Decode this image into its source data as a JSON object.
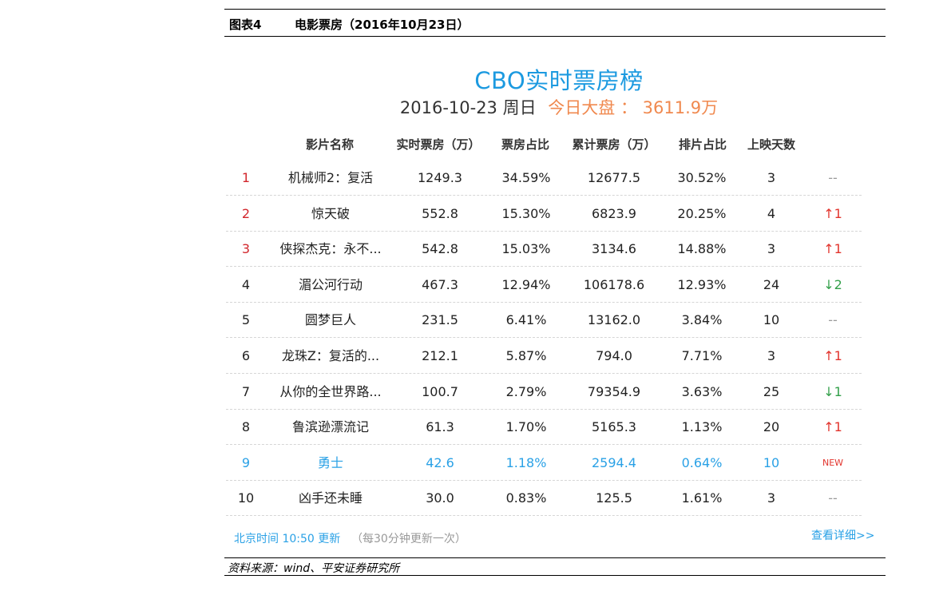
{
  "figure": {
    "number": "图表4",
    "title": "电影票房（2016年10月23日）",
    "source": "资料来源：wind、平安证券研究所"
  },
  "board": {
    "title": "CBO实时票房榜",
    "date": "2016-10-23 周日",
    "market": "今日大盘 ： 3611.9万"
  },
  "columns": [
    "影片名称",
    "实时票房（万）",
    "票房占比",
    "累计票房（万）",
    "排片占比",
    "上映天数"
  ],
  "rows": [
    {
      "rank": "1",
      "name": "机械师2：复活",
      "realtime": "1249.3",
      "share": "34.59%",
      "cumulative": "12677.5",
      "showing": "30.52%",
      "days": "3",
      "trend": "--",
      "trend_type": "flat"
    },
    {
      "rank": "2",
      "name": "惊天破",
      "realtime": "552.8",
      "share": "15.30%",
      "cumulative": "6823.9",
      "showing": "20.25%",
      "days": "4",
      "trend": "↑1",
      "trend_type": "up"
    },
    {
      "rank": "3",
      "name": "侠探杰克：永不...",
      "realtime": "542.8",
      "share": "15.03%",
      "cumulative": "3134.6",
      "showing": "14.88%",
      "days": "3",
      "trend": "↑1",
      "trend_type": "up"
    },
    {
      "rank": "4",
      "name": "湄公河行动",
      "realtime": "467.3",
      "share": "12.94%",
      "cumulative": "106178.6",
      "showing": "12.93%",
      "days": "24",
      "trend": "↓2",
      "trend_type": "down"
    },
    {
      "rank": "5",
      "name": "圆梦巨人",
      "realtime": "231.5",
      "share": "6.41%",
      "cumulative": "13162.0",
      "showing": "3.84%",
      "days": "10",
      "trend": "--",
      "trend_type": "flat"
    },
    {
      "rank": "6",
      "name": "龙珠Z：复活的...",
      "realtime": "212.1",
      "share": "5.87%",
      "cumulative": "794.0",
      "showing": "7.71%",
      "days": "3",
      "trend": "↑1",
      "trend_type": "up"
    },
    {
      "rank": "7",
      "name": "从你的全世界路...",
      "realtime": "100.7",
      "share": "2.79%",
      "cumulative": "79354.9",
      "showing": "3.63%",
      "days": "25",
      "trend": "↓1",
      "trend_type": "down"
    },
    {
      "rank": "8",
      "name": "鲁滨逊漂流记",
      "realtime": "61.3",
      "share": "1.70%",
      "cumulative": "5165.3",
      "showing": "1.13%",
      "days": "20",
      "trend": "↑1",
      "trend_type": "up"
    },
    {
      "rank": "9",
      "name": "勇士",
      "realtime": "42.6",
      "share": "1.18%",
      "cumulative": "2594.4",
      "showing": "0.64%",
      "days": "10",
      "trend": "NEW",
      "trend_type": "new"
    },
    {
      "rank": "10",
      "name": "凶手还未睡",
      "realtime": "30.0",
      "share": "0.83%",
      "cumulative": "125.5",
      "showing": "1.61%",
      "days": "3",
      "trend": "--",
      "trend_type": "flat"
    }
  ],
  "footer": {
    "update_time": "北京时间 10:50 更新",
    "update_note": "（每30分钟更新一次）",
    "more_link": "查看详细>>"
  },
  "colors": {
    "accent_blue": "#1c9ae0",
    "market_orange": "#f0894f",
    "rank_red": "#d2272d",
    "up_red": "#e2342d",
    "down_green": "#33a04a"
  }
}
